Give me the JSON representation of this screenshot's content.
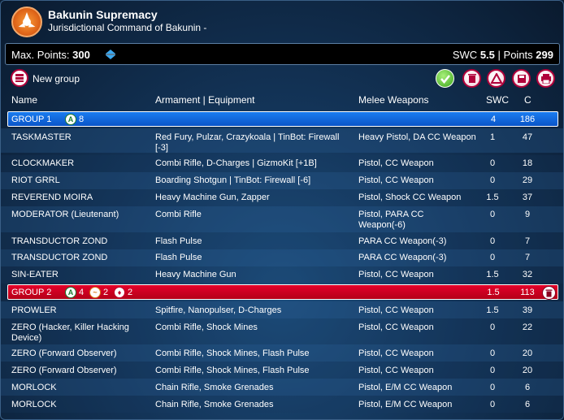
{
  "header": {
    "title": "Bakunin Supremacy",
    "subtitle": "Jurisdictional Command of Bakunin -"
  },
  "points_bar": {
    "max_label": "Max. Points:",
    "max_value": "300",
    "swc_label": "SWC",
    "swc_value": "5.5",
    "separator": "|",
    "points_label": "Points",
    "points_value": "299"
  },
  "toolbar": {
    "new_group_label": "New group",
    "icons": [
      "check-icon",
      "trash-icon",
      "warning-triangle-icon",
      "save-icon",
      "print-icon"
    ]
  },
  "columns": {
    "name": "Name",
    "armament": "Armament | Equipment",
    "melee": "Melee Weapons",
    "swc": "SWC",
    "cost": "C"
  },
  "groups": [
    {
      "label": "GROUP 1",
      "badges": [
        {
          "icon": "regular-order-icon",
          "letter": "A",
          "count": "8"
        }
      ],
      "swc": "4",
      "cost": "186",
      "color": "#1a6ee6",
      "rows": [
        {
          "name": "TASKMASTER",
          "armament": "Red Fury, Pulzar, Crazykoala | TinBot: Firewall [-3]",
          "melee": "Heavy Pistol, DA CC Weapon",
          "swc": "1",
          "cost": "47"
        },
        {
          "name": "CLOCKMAKER",
          "armament": "Combi Rifle, D-Charges | GizmoKit [+1B]",
          "melee": "Pistol, CC Weapon",
          "swc": "0",
          "cost": "18"
        },
        {
          "name": "RIOT GRRL",
          "armament": "Boarding Shotgun | TinBot: Firewall [-6]",
          "melee": "Pistol, CC Weapon",
          "swc": "0",
          "cost": "29"
        },
        {
          "name": "REVEREND MOIRA",
          "armament": "Heavy Machine Gun, Zapper",
          "melee": "Pistol, Shock CC Weapon",
          "swc": "1.5",
          "cost": "37"
        },
        {
          "name": "MODERATOR (Lieutenant)",
          "armament": "Combi Rifle",
          "melee": "Pistol, PARA CC Weapon(-6)",
          "swc": "0",
          "cost": "9"
        },
        {
          "name": "TRANSDUCTOR ZOND",
          "armament": "Flash Pulse",
          "melee": "PARA CC Weapon(-3)",
          "swc": "0",
          "cost": "7"
        },
        {
          "name": "TRANSDUCTOR ZOND",
          "armament": "Flash Pulse",
          "melee": "PARA CC Weapon(-3)",
          "swc": "0",
          "cost": "7"
        },
        {
          "name": "SIN-EATER",
          "armament": "Heavy Machine Gun",
          "melee": "Pistol, CC Weapon",
          "swc": "1.5",
          "cost": "32"
        }
      ]
    },
    {
      "label": "GROUP 2",
      "badges": [
        {
          "icon": "regular-order-icon",
          "letter": "A",
          "count": "4"
        },
        {
          "icon": "irregular-order-icon",
          "letter": "~",
          "count": "2"
        },
        {
          "icon": "impetuous-order-icon",
          "letter": "♦",
          "count": "2"
        }
      ],
      "swc": "1.5",
      "cost": "113",
      "color": "#d4001f",
      "rows": [
        {
          "name": "PROWLER",
          "armament": "Spitfire, Nanopulser, D-Charges",
          "melee": "Pistol, CC Weapon",
          "swc": "1.5",
          "cost": "39"
        },
        {
          "name": "ZERO (Hacker, Killer Hacking Device)",
          "armament": "Combi Rifle, Shock Mines",
          "melee": "Pistol, CC Weapon",
          "swc": "0",
          "cost": "22"
        },
        {
          "name": "ZERO (Forward Observer)",
          "armament": "Combi Rifle, Shock Mines, Flash Pulse",
          "melee": "Pistol, CC Weapon",
          "swc": "0",
          "cost": "20"
        },
        {
          "name": "ZERO (Forward Observer)",
          "armament": "Combi Rifle, Shock Mines, Flash Pulse",
          "melee": "Pistol, CC Weapon",
          "swc": "0",
          "cost": "20"
        },
        {
          "name": "MORLOCK",
          "armament": "Chain Rifle, Smoke Grenades",
          "melee": "Pistol, E/M CC Weapon",
          "swc": "0",
          "cost": "6"
        },
        {
          "name": "MORLOCK",
          "armament": "Chain Rifle, Smoke Grenades",
          "melee": "Pistol, E/M CC Weapon",
          "swc": "0",
          "cost": "6"
        }
      ]
    }
  ]
}
